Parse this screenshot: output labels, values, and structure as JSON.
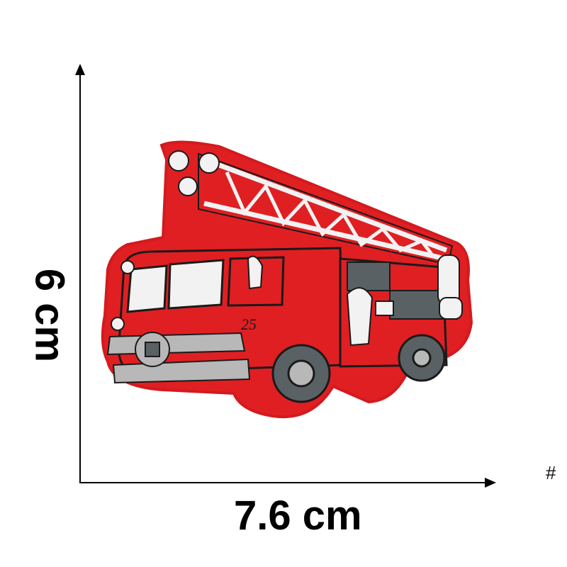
{
  "dimensions": {
    "width_label": "7.6  cm",
    "height_label": "6  cm"
  },
  "corner_mark": "#",
  "patch": {
    "number": "25",
    "colors": {
      "red": "#e01f23",
      "outline": "#1a1a1a",
      "white": "#f2f2f2",
      "gray": "#5a6164",
      "light_gray": "#b8b8b8"
    }
  }
}
